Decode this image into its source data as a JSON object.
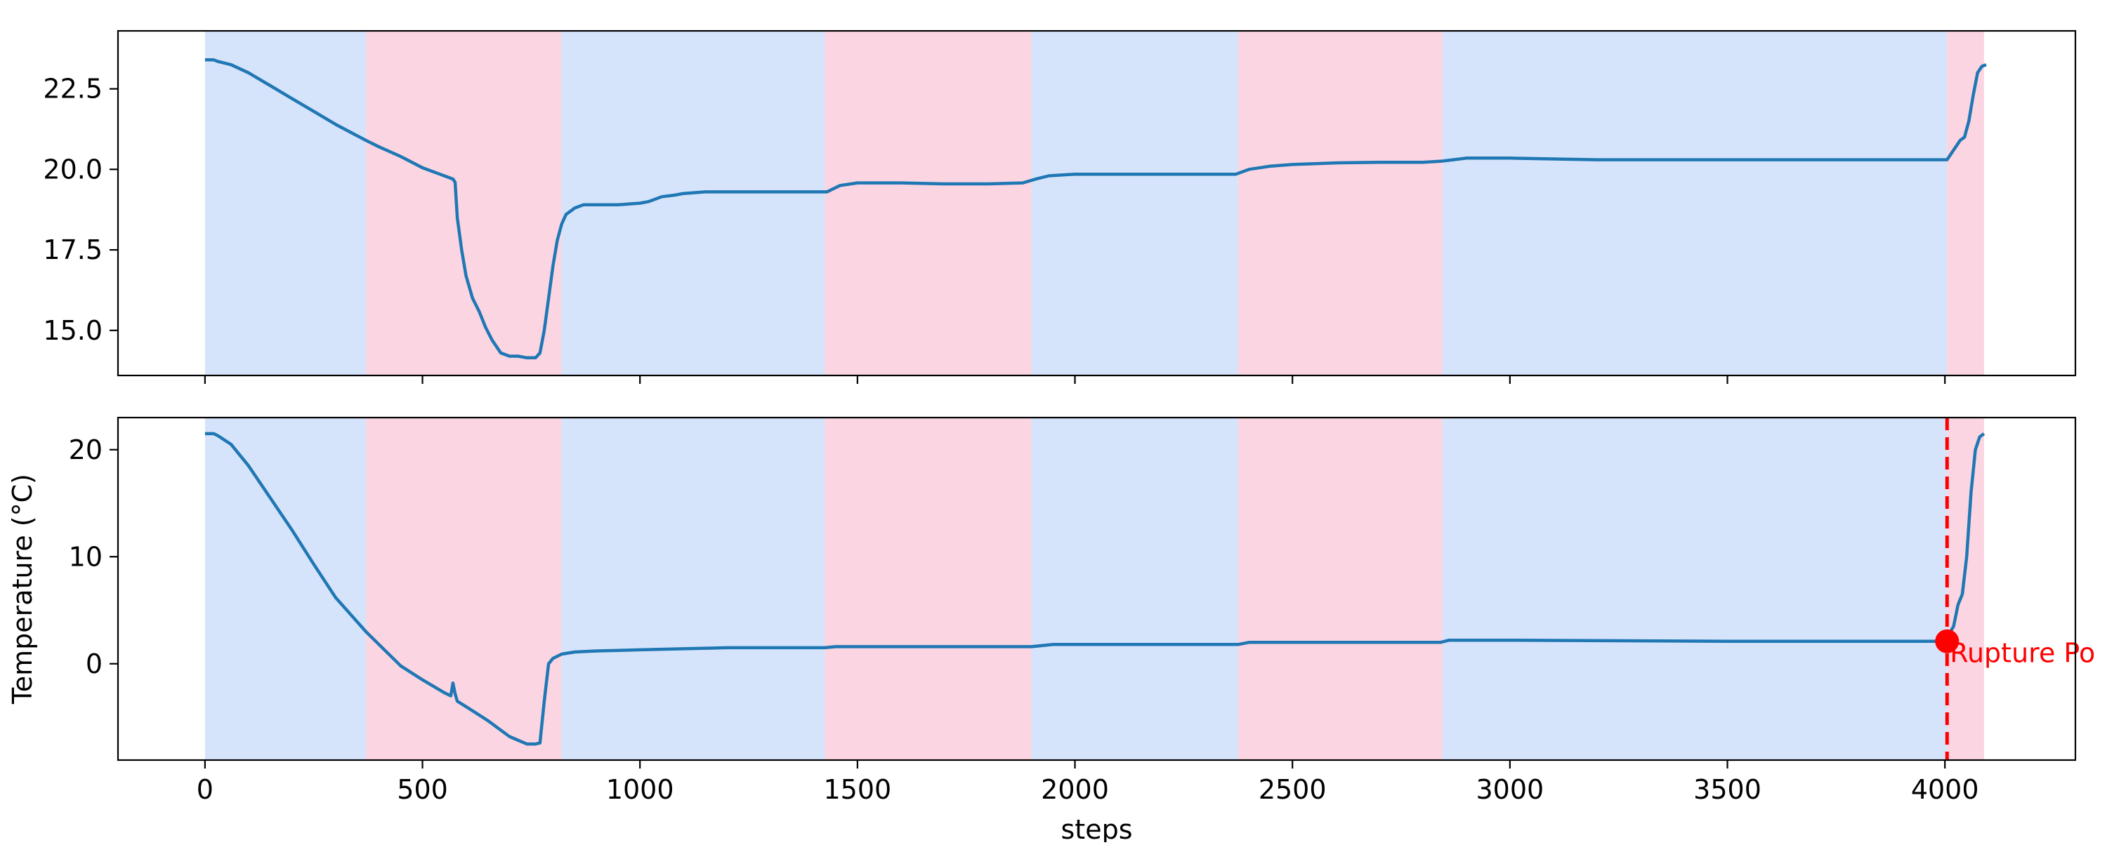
{
  "chart_data": [
    {
      "type": "line",
      "id": "top",
      "title": "",
      "xlabel": "",
      "ylabel": "",
      "xlim": [
        -200,
        4300
      ],
      "ylim": [
        13.6,
        24.3
      ],
      "yticks": [
        15.0,
        17.5,
        20.0,
        22.5
      ],
      "ytick_labels": [
        "15.0",
        "17.5",
        "20.0",
        "22.5"
      ],
      "xticks": [
        0,
        500,
        1000,
        1500,
        2000,
        2500,
        3000,
        3500,
        4000
      ],
      "xtick_labels": [],
      "shaded_regions": [
        {
          "start": 0,
          "end": 370,
          "phase": "blue"
        },
        {
          "start": 370,
          "end": 820,
          "phase": "pink"
        },
        {
          "start": 820,
          "end": 1425,
          "phase": "blue"
        },
        {
          "start": 1425,
          "end": 1900,
          "phase": "pink"
        },
        {
          "start": 1900,
          "end": 2375,
          "phase": "blue"
        },
        {
          "start": 2375,
          "end": 2845,
          "phase": "pink"
        },
        {
          "start": 2845,
          "end": 4005,
          "phase": "blue"
        },
        {
          "start": 4005,
          "end": 4090,
          "phase": "pink"
        }
      ],
      "series": [
        {
          "name": "temperature",
          "color": "#1f77b4",
          "x": [
            0,
            20,
            30,
            60,
            100,
            150,
            200,
            250,
            300,
            370,
            400,
            450,
            500,
            540,
            570,
            575,
            580,
            590,
            600,
            615,
            630,
            645,
            660,
            680,
            700,
            720,
            740,
            760,
            770,
            780,
            790,
            800,
            810,
            820,
            830,
            850,
            870,
            900,
            950,
            1000,
            1020,
            1050,
            1080,
            1100,
            1150,
            1200,
            1300,
            1400,
            1430,
            1460,
            1500,
            1600,
            1700,
            1800,
            1880,
            1910,
            1940,
            2000,
            2100,
            2200,
            2300,
            2370,
            2400,
            2450,
            2500,
            2600,
            2700,
            2800,
            2840,
            2870,
            2900,
            3000,
            3200,
            3400,
            3600,
            3800,
            3950,
            4005,
            4020,
            4035,
            4045,
            4055,
            4065,
            4075,
            4085,
            4095
          ],
          "y": [
            23.4,
            23.4,
            23.35,
            23.25,
            23.0,
            22.6,
            22.2,
            21.8,
            21.4,
            20.9,
            20.7,
            20.4,
            20.05,
            19.85,
            19.7,
            19.6,
            18.5,
            17.5,
            16.7,
            16.0,
            15.6,
            15.1,
            14.7,
            14.3,
            14.2,
            14.2,
            14.15,
            14.15,
            14.3,
            15.0,
            16.0,
            17.0,
            17.8,
            18.3,
            18.6,
            18.8,
            18.9,
            18.9,
            18.9,
            18.95,
            19.0,
            19.15,
            19.2,
            19.25,
            19.3,
            19.3,
            19.3,
            19.3,
            19.3,
            19.5,
            19.58,
            19.58,
            19.55,
            19.55,
            19.58,
            19.7,
            19.8,
            19.85,
            19.85,
            19.85,
            19.85,
            19.85,
            20.0,
            20.1,
            20.15,
            20.2,
            20.22,
            20.22,
            20.25,
            20.3,
            20.35,
            20.35,
            20.3,
            20.3,
            20.3,
            20.3,
            20.3,
            20.3,
            20.6,
            20.9,
            21.0,
            21.5,
            22.3,
            23.0,
            23.2,
            23.25
          ]
        }
      ]
    },
    {
      "type": "line",
      "id": "bottom",
      "title": "",
      "xlabel": "steps",
      "ylabel": "Temperature (°C)",
      "xlim": [
        -200,
        4300
      ],
      "ylim": [
        -9.0,
        23.0
      ],
      "yticks": [
        0,
        10,
        20
      ],
      "ytick_labels": [
        "0",
        "10",
        "20"
      ],
      "xticks": [
        0,
        500,
        1000,
        1500,
        2000,
        2500,
        3000,
        3500,
        4000
      ],
      "xtick_labels": [
        "0",
        "500",
        "1000",
        "1500",
        "2000",
        "2500",
        "3000",
        "3500",
        "4000"
      ],
      "shaded_regions": [
        {
          "start": 0,
          "end": 370,
          "phase": "blue"
        },
        {
          "start": 370,
          "end": 820,
          "phase": "pink"
        },
        {
          "start": 820,
          "end": 1425,
          "phase": "blue"
        },
        {
          "start": 1425,
          "end": 1900,
          "phase": "pink"
        },
        {
          "start": 1900,
          "end": 2375,
          "phase": "blue"
        },
        {
          "start": 2375,
          "end": 2845,
          "phase": "pink"
        },
        {
          "start": 2845,
          "end": 4005,
          "phase": "blue"
        },
        {
          "start": 4005,
          "end": 4090,
          "phase": "pink"
        }
      ],
      "series": [
        {
          "name": "temperature",
          "color": "#1f77b4",
          "x": [
            0,
            20,
            30,
            60,
            100,
            150,
            200,
            250,
            300,
            370,
            400,
            450,
            500,
            550,
            565,
            570,
            575,
            580,
            600,
            650,
            700,
            740,
            760,
            770,
            780,
            790,
            800,
            820,
            850,
            900,
            1000,
            1100,
            1200,
            1300,
            1400,
            1425,
            1450,
            1500,
            1700,
            1900,
            1950,
            2100,
            2300,
            2375,
            2400,
            2600,
            2840,
            2860,
            3000,
            3500,
            4000,
            4020,
            4030,
            4040,
            4050,
            4060,
            4070,
            4080,
            4090
          ],
          "y": [
            21.5,
            21.5,
            21.3,
            20.5,
            18.5,
            15.5,
            12.5,
            9.3,
            6.2,
            3.0,
            1.8,
            -0.2,
            -1.5,
            -2.7,
            -3.0,
            -1.8,
            -2.8,
            -3.5,
            -4.0,
            -5.3,
            -6.8,
            -7.5,
            -7.5,
            -7.4,
            -3.5,
            0.0,
            0.5,
            0.9,
            1.1,
            1.2,
            1.3,
            1.4,
            1.5,
            1.5,
            1.5,
            1.5,
            1.6,
            1.6,
            1.6,
            1.6,
            1.8,
            1.8,
            1.8,
            1.8,
            2.0,
            2.0,
            2.0,
            2.2,
            2.2,
            2.1,
            2.1,
            3.5,
            5.5,
            6.5,
            10.0,
            16.0,
            20.0,
            21.2,
            21.5
          ]
        }
      ],
      "annotations": [
        {
          "type": "vline",
          "x": 4005,
          "color": "#ff0000",
          "style": "dashed"
        },
        {
          "type": "marker",
          "x": 4005,
          "y": 2.1,
          "color": "#ff0000"
        },
        {
          "type": "text",
          "x": 4005,
          "y": 2.1,
          "text": "Rupture Po",
          "color": "#ff0000"
        }
      ]
    }
  ],
  "colors": {
    "line": "#1f77b4",
    "blue_phase": "#d6e4fb",
    "pink_phase": "#fbd6e2",
    "annotation": "#ff0000"
  }
}
